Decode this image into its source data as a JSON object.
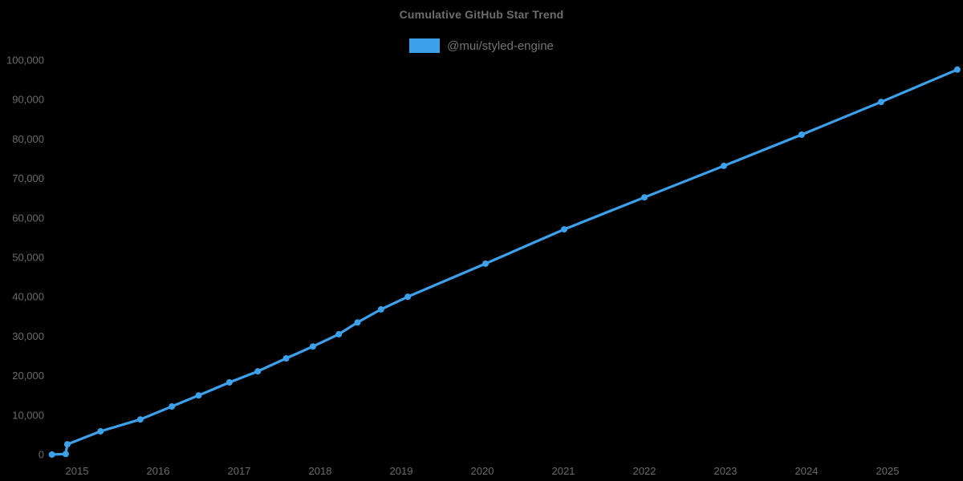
{
  "title": "Cumulative GitHub Star Trend",
  "colors": {
    "background": "#000000",
    "title_text": "#6d6d6d",
    "tick_text": "#6b6b6b",
    "series_blue": "#3da0ea"
  },
  "legend": {
    "items": [
      {
        "label": "@mui/styled-engine",
        "color": "#3da0ea"
      }
    ]
  },
  "chart_data": {
    "type": "line",
    "title": "Cumulative GitHub Star Trend",
    "xlabel": "",
    "ylabel": "",
    "grid": false,
    "legend_position": "top-center",
    "xlim": [
      2014.6,
      2025.95
    ],
    "ylim": [
      0,
      100000
    ],
    "x_ticks": [
      2015,
      2016,
      2017,
      2018,
      2019,
      2020,
      2021,
      2022,
      2023,
      2024,
      2025
    ],
    "y_ticks": [
      0,
      10000,
      20000,
      30000,
      40000,
      50000,
      60000,
      70000,
      80000,
      90000,
      100000
    ],
    "y_tick_labels": [
      "0",
      "10,000",
      "20,000",
      "30,000",
      "40,000",
      "50,000",
      "60,000",
      "70,000",
      "80,000",
      "90,000",
      "100,000"
    ],
    "series": [
      {
        "name": "@mui/styled-engine",
        "color": "#3da0ea",
        "marker": "circle",
        "x": [
          2014.69,
          2014.86,
          2014.88,
          2015.29,
          2015.78,
          2016.17,
          2016.5,
          2016.88,
          2017.23,
          2017.58,
          2017.91,
          2018.23,
          2018.46,
          2018.75,
          2019.08,
          2020.04,
          2021.01,
          2022.0,
          2022.98,
          2023.94,
          2024.92,
          2025.86
        ],
        "y": [
          0,
          150,
          2600,
          5900,
          8900,
          12200,
          15000,
          18300,
          21100,
          24400,
          27400,
          30500,
          33500,
          36800,
          40000,
          48400,
          57100,
          65200,
          73200,
          81100,
          89400,
          97600
        ]
      }
    ]
  }
}
